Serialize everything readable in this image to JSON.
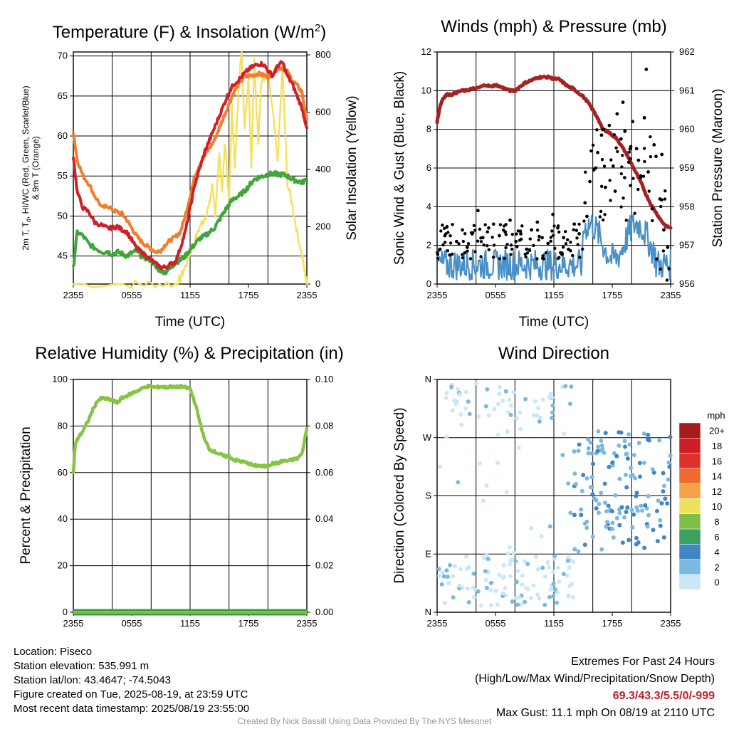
{
  "chart_data": [
    {
      "type": "line",
      "title": "Temperature (F) & Insolation (W/m",
      "title_sup": "2",
      "title_close": ")",
      "xlabel": "Time (UTC)",
      "ylabel_left": "2m T, T",
      "ylabel_left_sub": "d",
      "ylabel_left_rest": ", HI/WC (Red, Green, Scarlet/Blue)",
      "ylabel_left_line2": "& 9m T (Orange)",
      "ylabel_right": "Solar Insolation (Yellow)",
      "x_ticks": [
        "2355",
        "0555",
        "1155",
        "1755",
        "2355"
      ],
      "y_ticks_left": [
        "45",
        "50",
        "55",
        "60",
        "65",
        "70"
      ],
      "y_ticks_right": [
        "0",
        "200",
        "400",
        "600",
        "800"
      ],
      "ylim_left": [
        41.5,
        70.5
      ],
      "ylim_right": [
        0,
        810
      ],
      "x_hours": [
        0,
        24
      ],
      "series": [
        {
          "axis": "left",
          "color": "#f07e2b",
          "x": [
            0,
            0.4,
            1,
            1.6,
            2.2,
            3,
            3.5,
            4,
            4.5,
            5,
            5.5,
            6,
            6.5,
            7,
            7.5,
            8,
            8.5,
            9,
            9.5,
            10,
            10.5,
            11,
            11.5,
            12,
            12.5,
            13,
            13.5,
            14,
            14.5,
            15,
            15.5,
            16,
            16.5,
            17,
            17.5,
            18,
            18.5,
            19,
            19.5,
            20,
            20.5,
            21,
            21.5,
            22,
            22.5,
            23,
            23.5,
            24
          ],
          "y": [
            60.5,
            57,
            55,
            54,
            52.5,
            51,
            51.3,
            50.8,
            50.5,
            50.3,
            49.5,
            48.5,
            47.5,
            46.8,
            46.3,
            45.9,
            45.5,
            45.7,
            46.5,
            47,
            47.4,
            48,
            50,
            52.5,
            55,
            56.5,
            57.5,
            58.5,
            59.5,
            61,
            62.5,
            64,
            65.5,
            66.5,
            67.3,
            67.5,
            67.6,
            67.8,
            67.6,
            67.4,
            67.8,
            68.5,
            68.5,
            68,
            67,
            66.3,
            65.5,
            62
          ]
        },
        {
          "axis": "left",
          "color": "#cc2128",
          "x": [
            0,
            0.4,
            1,
            1.6,
            2.2,
            3,
            3.5,
            4,
            4.5,
            5,
            5.5,
            6,
            6.5,
            7,
            7.5,
            8,
            8.5,
            9,
            9.5,
            10,
            10.5,
            11,
            11.5,
            12,
            12.5,
            13,
            13.5,
            14,
            14.5,
            15,
            15.5,
            16,
            16.5,
            17,
            17.5,
            18,
            18.5,
            19,
            19.5,
            20,
            20.5,
            21,
            21.5,
            22,
            22.5,
            23,
            23.5,
            24
          ],
          "y": [
            57.5,
            53,
            51,
            50.5,
            49.2,
            48.8,
            48.5,
            48.5,
            48.7,
            48.3,
            48,
            47,
            46,
            45.5,
            45,
            44.5,
            44,
            43.6,
            43.6,
            44,
            44.3,
            46,
            48,
            51,
            54,
            56,
            58,
            59.5,
            61,
            62.5,
            64,
            65.5,
            66.5,
            67,
            67.7,
            68.3,
            68.7,
            69,
            69,
            68.2,
            67.5,
            68.8,
            69.2,
            67.5,
            66.5,
            65,
            63.5,
            61
          ]
        },
        {
          "axis": "left",
          "color": "#3ea63a",
          "x": [
            0,
            0.4,
            1,
            1.6,
            2.2,
            3,
            3.5,
            4,
            4.5,
            5,
            5.5,
            6,
            6.5,
            7,
            7.5,
            8,
            8.5,
            9,
            9.5,
            10,
            10.5,
            11,
            11.5,
            12,
            12.5,
            13,
            13.5,
            14,
            14.5,
            15,
            15.5,
            16,
            16.5,
            17,
            17.5,
            18,
            18.5,
            19,
            19.5,
            20,
            20.5,
            21,
            21.5,
            22,
            22.5,
            23,
            23.5,
            24
          ],
          "y": [
            43.5,
            48,
            47.5,
            46.5,
            46,
            45.5,
            45.6,
            45.2,
            45.5,
            45.3,
            45,
            45.4,
            45.6,
            45,
            44.7,
            44.5,
            43.5,
            43.2,
            43,
            43.5,
            44.2,
            44.5,
            45,
            45.8,
            46.5,
            47.2,
            47.5,
            48,
            48.5,
            49.5,
            50.5,
            51.5,
            52.2,
            52.5,
            53,
            53.7,
            54.5,
            54.8,
            55,
            55.2,
            55.3,
            55.2,
            55.2,
            55,
            54.6,
            54.4,
            54.2,
            54.5
          ]
        },
        {
          "axis": "right",
          "color": "#f5e05a",
          "x": [
            0,
            6,
            8,
            10.5,
            11,
            11.5,
            12,
            12.5,
            13,
            13.5,
            14,
            14.3,
            14.6,
            15,
            15.3,
            15.6,
            16,
            16.3,
            16.6,
            17,
            17.3,
            17.6,
            18,
            18.3,
            18.6,
            19,
            19.3,
            19.6,
            20,
            20.5,
            21,
            21.5,
            22,
            22.5,
            23,
            23.5,
            23.8,
            24
          ],
          "y": [
            0,
            0,
            0,
            0,
            20,
            60,
            110,
            150,
            200,
            230,
            280,
            350,
            240,
            450,
            330,
            500,
            280,
            620,
            400,
            700,
            810,
            550,
            720,
            420,
            780,
            500,
            700,
            720,
            740,
            600,
            430,
            760,
            350,
            280,
            180,
            100,
            40,
            0
          ]
        }
      ]
    },
    {
      "type": "scatter",
      "title": "Winds (mph) & Pressure (mb)",
      "xlabel": "Time (UTC)",
      "ylabel_left": "Sonic Wind & Gust (Blue, Black)",
      "ylabel_right": "Station Pressure (Maroon)",
      "x_ticks": [
        "2355",
        "0555",
        "1155",
        "1755",
        "2355"
      ],
      "y_ticks_left": [
        "0",
        "2",
        "4",
        "6",
        "8",
        "10",
        "12"
      ],
      "y_ticks_right": [
        "956",
        "957",
        "958",
        "959",
        "960",
        "961",
        "962"
      ],
      "ylim_left": [
        0,
        12
      ],
      "ylim_right": [
        956,
        962
      ],
      "x_hours": [
        0,
        24
      ],
      "pressure": {
        "color": "#a52223",
        "x": [
          0,
          0.3,
          0.6,
          1,
          1.5,
          2,
          2.5,
          3,
          3.5,
          4,
          4.5,
          5,
          5.5,
          6,
          6.5,
          7,
          7.5,
          8,
          8.5,
          9,
          9.5,
          10,
          10.5,
          11,
          11.5,
          12,
          12.5,
          13,
          13.5,
          14,
          14.5,
          15,
          15.5,
          16,
          16.5,
          17,
          17.5,
          18,
          18.5,
          19,
          19.5,
          20,
          20.5,
          21,
          21.5,
          22,
          22.5,
          23,
          23.5,
          24
        ],
        "y": [
          960.2,
          960.6,
          960.8,
          960.9,
          960.9,
          960.95,
          961.0,
          961.0,
          961.05,
          961.05,
          961.1,
          961.15,
          961.1,
          961.15,
          961.1,
          961.05,
          961.0,
          961.0,
          961.1,
          961.2,
          961.25,
          961.3,
          961.35,
          961.35,
          961.35,
          961.3,
          961.3,
          961.2,
          961.1,
          961.05,
          960.95,
          960.85,
          960.7,
          960.5,
          960.3,
          960.0,
          959.95,
          959.85,
          959.75,
          959.55,
          959.35,
          959.1,
          958.85,
          958.6,
          958.3,
          958.05,
          957.85,
          957.65,
          957.5,
          957.45
        ]
      },
      "wind": {
        "color": "#4a90c8"
      },
      "gust": {
        "color": "#000000",
        "x": [
          0.3,
          0.8,
          1.3,
          2.0,
          2.6,
          3.1,
          3.6,
          4.2,
          4.7,
          5.3,
          5.8,
          6.4,
          7.0,
          7.5,
          8.1,
          8.6,
          9.2,
          9.7,
          10.3,
          10.8,
          11.4,
          11.9,
          12.4,
          13.0,
          13.5,
          14.1,
          14.6,
          15.2,
          15.7,
          16.1,
          16.5,
          16.9,
          17.3,
          17.7,
          18.1,
          18.5,
          18.9,
          19.3,
          19.7,
          20.1,
          20.5,
          20.9,
          21.3,
          21.7,
          22.1,
          22.5,
          22.9,
          23.3,
          23.7,
          15.4,
          16.3,
          17.1,
          18.3,
          19.1,
          19.9,
          20.7,
          21.5,
          22.3,
          23.1
        ],
        "y": [
          1.8,
          2.5,
          1.5,
          2.2,
          2.8,
          1.9,
          2.6,
          3.8,
          2.4,
          2.9,
          3.1,
          2.5,
          2.7,
          3.3,
          2.2,
          2.6,
          1.8,
          2.8,
          3.2,
          2.4,
          2.1,
          3.6,
          2.9,
          2.4,
          1.8,
          3.1,
          2.6,
          4.2,
          5.3,
          5.9,
          6.8,
          7.7,
          5.0,
          8.2,
          6.1,
          8.8,
          7.5,
          7.9,
          6.3,
          8.4,
          7.0,
          5.5,
          8.6,
          5.8,
          3.9,
          6.6,
          4.4,
          2.8,
          1.9,
          3.5,
          6.0,
          8.0,
          4.8,
          9.4,
          7.1,
          6.4,
          11.1,
          7.2,
          6.7
        ]
      }
    },
    {
      "type": "line",
      "title": "Relative Humidity (%) & Precipitation (in)",
      "ylabel_left": "Percent & Precipitation",
      "x_ticks": [
        "2355",
        "0555",
        "1155",
        "1755",
        "2355"
      ],
      "y_ticks_left": [
        "0",
        "20",
        "40",
        "60",
        "80",
        "100"
      ],
      "y_ticks_right": [
        "0.00",
        "0.02",
        "0.04",
        "0.06",
        "0.08",
        "0.10"
      ],
      "ylim_left": [
        0,
        100
      ],
      "ylim_right": [
        0,
        0.1
      ],
      "x_hours": [
        0,
        24
      ],
      "series": [
        {
          "axis": "left",
          "color": "#86c443",
          "x": [
            0,
            0.2,
            0.5,
            1,
            1.5,
            2,
            2.5,
            3,
            3.5,
            4,
            4.5,
            5,
            5.5,
            6,
            6.5,
            7,
            7.5,
            8,
            8.5,
            9,
            9.5,
            10,
            10.5,
            11,
            11.5,
            12,
            12.5,
            13,
            13.5,
            14,
            14.5,
            15,
            15.5,
            16,
            16.5,
            17,
            17.5,
            18,
            18.5,
            19,
            19.5,
            20,
            20.5,
            21,
            21.5,
            22,
            22.5,
            23,
            23.5,
            24
          ],
          "y": [
            60,
            72,
            75,
            78,
            82,
            87,
            91,
            92,
            91.5,
            91,
            90,
            92,
            93,
            94,
            95,
            96,
            97,
            97,
            96.5,
            97,
            96.5,
            97,
            96.5,
            97,
            96.5,
            96,
            90,
            82,
            74,
            70,
            69,
            68,
            67,
            67,
            65.5,
            65,
            64.5,
            64,
            63,
            63,
            62.5,
            63,
            64,
            64,
            65,
            65,
            65.5,
            66,
            68,
            79
          ]
        },
        {
          "axis": "right",
          "color": "#3a9a3e",
          "x": [
            0,
            24
          ],
          "y": [
            0,
            0
          ]
        }
      ]
    },
    {
      "type": "scatter",
      "title": "Wind Direction",
      "ylabel_left": "Direction (Colored By Speed)",
      "x_ticks": [
        "2355",
        "0555",
        "1155",
        "1755",
        "2355"
      ],
      "y_ticks_left": [
        "N",
        "E",
        "S",
        "W",
        "N"
      ],
      "ylim_left": [
        0,
        360
      ],
      "x_hours": [
        0,
        24
      ],
      "legend_title": "mph",
      "legend_labels": [
        "20+",
        "18",
        "16",
        "14",
        "12",
        "10",
        "8",
        "6",
        "4",
        "2",
        "0"
      ],
      "legend_colors": [
        "#a51c1f",
        "#cb2026",
        "#e0322a",
        "#ef6a2e",
        "#f6a347",
        "#ece35a",
        "#7dbf48",
        "#3e9f62",
        "#3f86c3",
        "#7bb8e2",
        "#c9e7f7"
      ]
    }
  ],
  "footer": {
    "location": "Location: Piseco",
    "elevation": "Station elevation: 535.991 m",
    "latlon": "Station lat/lon: 43.4647; -74.5043",
    "created": "Figure created on Tue, 2025-08-19, at 23:59 UTC",
    "recent": "Most recent data timestamp: 2025/08/19 23:55:00",
    "extremes_title": "Extremes For Past 24 Hours",
    "extremes_sub": "(High/Low/Max Wind/Precipitation/Snow Depth)",
    "extremes_values": "69.3/43.3/5.5/0/-999",
    "max_gust": "Max Gust: 11.1 mph On 08/19 at 2110 UTC",
    "credit": "Created By Nick Bassill Using Data Provided By The NYS Mesonet"
  }
}
